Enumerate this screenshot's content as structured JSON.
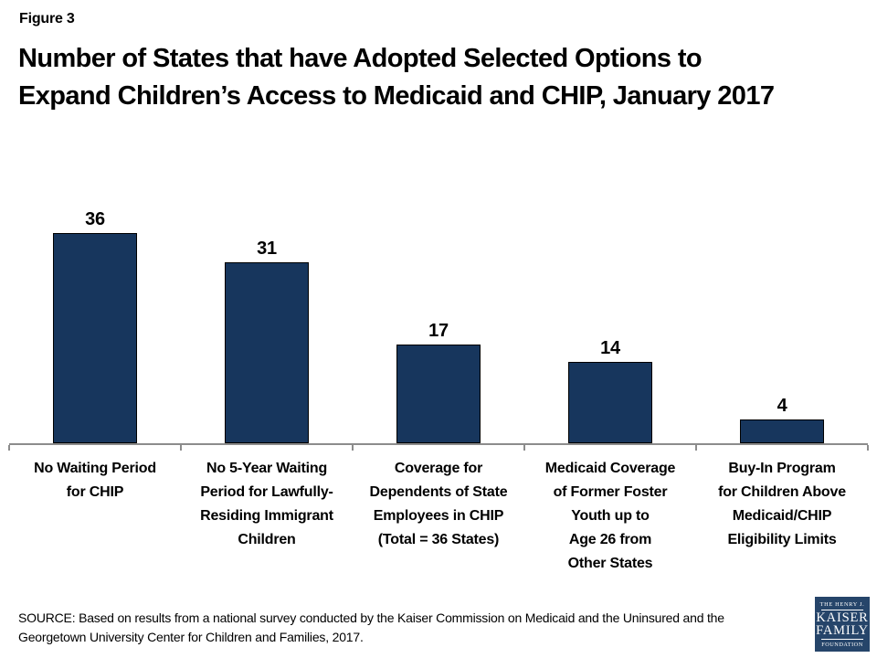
{
  "figure_label": "Figure 3",
  "title": "Number of States that have Adopted Selected Options to\nExpand Children’s Access to Medicaid and CHIP, January 2017",
  "chart_data": {
    "type": "bar",
    "title": "Number of States that have Adopted Selected Options to Expand Children’s Access to Medicaid and CHIP, January 2017",
    "categories": [
      "No Waiting Period\nfor CHIP",
      "No 5-Year Waiting\nPeriod for Lawfully-\nResiding Immigrant\nChildren",
      "Coverage for\nDependents of State\nEmployees in CHIP\n(Total = 36 States)",
      "Medicaid Coverage\nof Former Foster\nYouth up to\nAge 26 from\nOther States",
      "Buy-In Program\nfor Children Above\nMedicaid/CHIP\nEligibility Limits"
    ],
    "values": [
      36,
      31,
      17,
      14,
      4
    ],
    "data_labels": [
      "36",
      "31",
      "17",
      "14",
      "4"
    ],
    "xlabel": "",
    "ylabel": "",
    "ylim": [
      0,
      40
    ],
    "grid": false,
    "legend": false,
    "bar_color": "#17365D",
    "bar_border_color": "#000000",
    "axis_color": "#8C8C8C"
  },
  "source": "SOURCE: Based on results from a national survey conducted by the Kaiser Commission on Medicaid and the Uninsured and the\nGeorgetown University Center for Children and Families, 2017.",
  "logo": {
    "top": "THE HENRY J.",
    "kaiser": "KAISER",
    "family": "FAMILY",
    "bottom": "FOUNDATION",
    "bg_color": "#26456A",
    "text_color": "#FFFFFF"
  }
}
